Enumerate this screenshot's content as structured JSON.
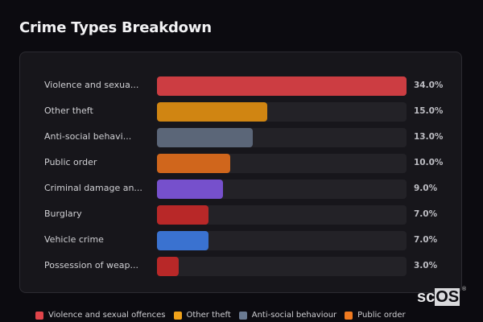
{
  "header": {
    "title": "Crime Types Breakdown"
  },
  "chart_data": {
    "type": "bar",
    "orientation": "horizontal",
    "title": "Crime Types Breakdown",
    "categories": [
      "Violence and sexua...",
      "Other theft",
      "Anti-social behavi...",
      "Public order",
      "Criminal damage an...",
      "Burglary",
      "Vehicle crime",
      "Possession of weap..."
    ],
    "values": [
      34.0,
      15.0,
      13.0,
      10.0,
      9.0,
      7.0,
      7.0,
      3.0
    ],
    "value_labels": [
      "34.0%",
      "15.0%",
      "13.0%",
      "10.0%",
      "9.0%",
      "7.0%",
      "7.0%",
      "3.0%"
    ],
    "colors": [
      "#cc3d42",
      "#d08512",
      "#5b6678",
      "#d0661c",
      "#7650cc",
      "#b82828",
      "#3a72d0",
      "#b82828"
    ],
    "xlim": [
      0,
      34
    ],
    "unit": "%",
    "grid": false,
    "legend": [
      "Violence and sexual offences",
      "Other theft",
      "Anti-social behaviour",
      "Public order"
    ],
    "legend_position": "bottom"
  },
  "legend": [
    {
      "label": "Violence and sexual offences",
      "color": "#e0444a"
    },
    {
      "label": "Other theft",
      "color": "#f0a21a"
    },
    {
      "label": "Anti-social behaviour",
      "color": "#6a7a92"
    },
    {
      "label": "Public order",
      "color": "#f07a20"
    }
  ],
  "logo": {
    "text_a": "sc",
    "text_b": "OS",
    "reg": "®"
  }
}
